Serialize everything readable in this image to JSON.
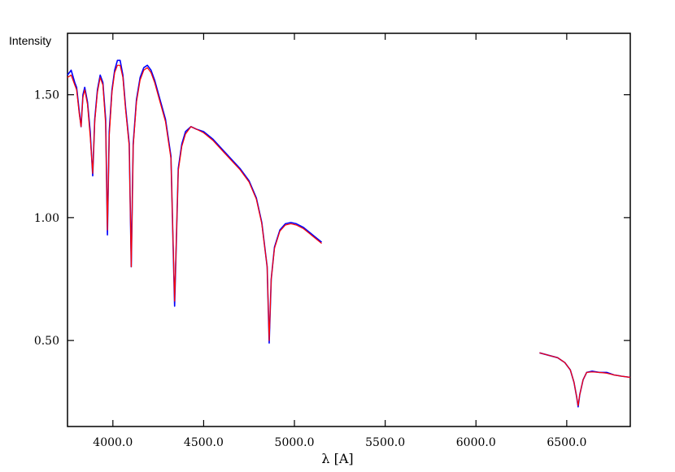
{
  "chart_data": {
    "type": "line",
    "xlabel": "λ [A]",
    "ylabel": "Intensity",
    "xlim": [
      3750,
      6850
    ],
    "ylim": [
      0.15,
      1.75
    ],
    "xticks": [
      4000,
      4500,
      5000,
      5500,
      6000,
      6500
    ],
    "xtick_labels": [
      "4000.0",
      "4500.0",
      "5000.0",
      "5500.0",
      "6000.0",
      "6500.0"
    ],
    "yticks": [
      0.5,
      1.0,
      1.5
    ],
    "ytick_labels": [
      "0.50",
      "1.00",
      "1.50"
    ],
    "grid": false,
    "series": [
      {
        "color": "#0000ff",
        "segments": [
          [
            [
              3750,
              1.58
            ],
            [
              3770,
              1.6
            ],
            [
              3790,
              1.55
            ],
            [
              3800,
              1.53
            ],
            [
              3815,
              1.43
            ],
            [
              3825,
              1.37
            ],
            [
              3835,
              1.5
            ],
            [
              3845,
              1.53
            ],
            [
              3860,
              1.47
            ],
            [
              3875,
              1.35
            ],
            [
              3889,
              1.17
            ],
            [
              3900,
              1.4
            ],
            [
              3915,
              1.52
            ],
            [
              3930,
              1.58
            ],
            [
              3945,
              1.55
            ],
            [
              3960,
              1.4
            ],
            [
              3970,
              0.93
            ],
            [
              3980,
              1.35
            ],
            [
              3995,
              1.52
            ],
            [
              4010,
              1.6
            ],
            [
              4025,
              1.64
            ],
            [
              4040,
              1.64
            ],
            [
              4055,
              1.58
            ],
            [
              4070,
              1.45
            ],
            [
              4090,
              1.3
            ],
            [
              4101,
              0.8
            ],
            [
              4112,
              1.3
            ],
            [
              4130,
              1.48
            ],
            [
              4150,
              1.57
            ],
            [
              4170,
              1.61
            ],
            [
              4190,
              1.62
            ],
            [
              4210,
              1.6
            ],
            [
              4230,
              1.56
            ],
            [
              4260,
              1.48
            ],
            [
              4290,
              1.4
            ],
            [
              4320,
              1.25
            ],
            [
              4340,
              0.64
            ],
            [
              4360,
              1.2
            ],
            [
              4380,
              1.3
            ],
            [
              4400,
              1.35
            ],
            [
              4430,
              1.37
            ],
            [
              4460,
              1.36
            ],
            [
              4500,
              1.35
            ],
            [
              4550,
              1.32
            ],
            [
              4600,
              1.28
            ],
            [
              4650,
              1.24
            ],
            [
              4700,
              1.2
            ],
            [
              4750,
              1.15
            ],
            [
              4790,
              1.08
            ],
            [
              4820,
              0.98
            ],
            [
              4850,
              0.8
            ],
            [
              4861,
              0.49
            ],
            [
              4872,
              0.75
            ],
            [
              4890,
              0.88
            ],
            [
              4920,
              0.95
            ],
            [
              4950,
              0.975
            ],
            [
              4980,
              0.98
            ],
            [
              5010,
              0.975
            ],
            [
              5050,
              0.96
            ],
            [
              5100,
              0.93
            ],
            [
              5150,
              0.9
            ]
          ],
          [
            [
              6350,
              0.45
            ],
            [
              6400,
              0.44
            ],
            [
              6450,
              0.43
            ],
            [
              6490,
              0.41
            ],
            [
              6520,
              0.38
            ],
            [
              6540,
              0.33
            ],
            [
              6555,
              0.27
            ],
            [
              6563,
              0.23
            ],
            [
              6572,
              0.28
            ],
            [
              6590,
              0.34
            ],
            [
              6610,
              0.37
            ],
            [
              6640,
              0.375
            ],
            [
              6680,
              0.37
            ],
            [
              6720,
              0.37
            ],
            [
              6760,
              0.36
            ],
            [
              6800,
              0.355
            ],
            [
              6850,
              0.35
            ]
          ]
        ]
      },
      {
        "color": "#ff0000",
        "segments": [
          [
            [
              3750,
              1.57
            ],
            [
              3770,
              1.58
            ],
            [
              3790,
              1.54
            ],
            [
              3800,
              1.52
            ],
            [
              3815,
              1.42
            ],
            [
              3825,
              1.37
            ],
            [
              3835,
              1.49
            ],
            [
              3845,
              1.52
            ],
            [
              3860,
              1.46
            ],
            [
              3875,
              1.33
            ],
            [
              3889,
              1.18
            ],
            [
              3900,
              1.39
            ],
            [
              3915,
              1.51
            ],
            [
              3930,
              1.57
            ],
            [
              3945,
              1.54
            ],
            [
              3960,
              1.38
            ],
            [
              3970,
              0.95
            ],
            [
              3980,
              1.33
            ],
            [
              3995,
              1.51
            ],
            [
              4010,
              1.59
            ],
            [
              4025,
              1.62
            ],
            [
              4040,
              1.62
            ],
            [
              4055,
              1.57
            ],
            [
              4070,
              1.44
            ],
            [
              4090,
              1.29
            ],
            [
              4101,
              0.8
            ],
            [
              4112,
              1.29
            ],
            [
              4130,
              1.47
            ],
            [
              4150,
              1.56
            ],
            [
              4170,
              1.6
            ],
            [
              4190,
              1.61
            ],
            [
              4210,
              1.59
            ],
            [
              4230,
              1.55
            ],
            [
              4260,
              1.47
            ],
            [
              4290,
              1.39
            ],
            [
              4320,
              1.24
            ],
            [
              4340,
              0.66
            ],
            [
              4360,
              1.19
            ],
            [
              4380,
              1.29
            ],
            [
              4400,
              1.34
            ],
            [
              4430,
              1.37
            ],
            [
              4460,
              1.36
            ],
            [
              4500,
              1.345
            ],
            [
              4550,
              1.315
            ],
            [
              4600,
              1.275
            ],
            [
              4650,
              1.235
            ],
            [
              4700,
              1.195
            ],
            [
              4750,
              1.145
            ],
            [
              4790,
              1.075
            ],
            [
              4820,
              0.975
            ],
            [
              4850,
              0.8
            ],
            [
              4861,
              0.5
            ],
            [
              4872,
              0.75
            ],
            [
              4890,
              0.875
            ],
            [
              4920,
              0.945
            ],
            [
              4950,
              0.97
            ],
            [
              4980,
              0.975
            ],
            [
              5010,
              0.97
            ],
            [
              5050,
              0.955
            ],
            [
              5100,
              0.925
            ],
            [
              5150,
              0.895
            ]
          ],
          [
            [
              6350,
              0.45
            ],
            [
              6400,
              0.44
            ],
            [
              6450,
              0.43
            ],
            [
              6490,
              0.41
            ],
            [
              6520,
              0.38
            ],
            [
              6540,
              0.33
            ],
            [
              6555,
              0.27
            ],
            [
              6563,
              0.235
            ],
            [
              6572,
              0.28
            ],
            [
              6590,
              0.34
            ],
            [
              6610,
              0.37
            ],
            [
              6640,
              0.372
            ],
            [
              6680,
              0.37
            ],
            [
              6720,
              0.367
            ],
            [
              6760,
              0.36
            ],
            [
              6800,
              0.355
            ],
            [
              6850,
              0.35
            ]
          ]
        ]
      }
    ]
  }
}
